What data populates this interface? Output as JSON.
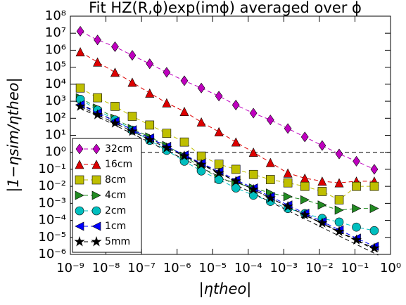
{
  "chart_data": {
    "type": "line",
    "title": "Fit HZ(R,ϕ)exp(imϕ) averaged over ϕ",
    "x_label": "|ηtheo|",
    "y_label": "|1−ηsim/ηtheo|",
    "log_x": true,
    "log_y": true,
    "legend": "lower left",
    "x": [
      1.9e-09,
      5.8e-09,
      1.8e-08,
      5.5e-08,
      1.7e-07,
      5.1e-07,
      1.6e-06,
      4.8e-06,
      1.5e-05,
      4.5e-05,
      0.00014,
      0.00042,
      0.0013,
      0.0039,
      0.012,
      0.036,
      0.11,
      0.35
    ],
    "series": [
      {
        "name": "32cm",
        "color": "#bf00bf",
        "marker": "diamond",
        "values": [
          13000000.0,
          4000000.0,
          1600000.0,
          500000.0,
          160000.0,
          50000.0,
          16000.0,
          6000.0,
          2000.0,
          600,
          200,
          80,
          25,
          8,
          2.5,
          0.8,
          0.3,
          0.1
        ]
      },
      {
        "name": "16cm",
        "color": "#dd0000",
        "marker": "triangle-up",
        "values": [
          800000.0,
          200000.0,
          50000.0,
          13000.0,
          3000.0,
          800,
          250,
          60,
          16,
          4,
          1,
          0.25,
          0.06,
          0.03,
          0.02,
          0.016,
          0.02,
          0.02
        ]
      },
      {
        "name": "8cm",
        "color": "#bfbf00",
        "marker": "square",
        "values": [
          6000.0,
          1600.0,
          500,
          130,
          40,
          13,
          4,
          0.6,
          0.2,
          0.1,
          0.05,
          0.025,
          0.016,
          0.01,
          0.005,
          0.0016,
          0.01,
          0.01
        ]
      },
      {
        "name": "4cm",
        "color": "#228b22",
        "marker": "triangle-right",
        "values": [
          1600.0,
          400,
          100,
          25,
          8,
          2.5,
          0.6,
          0.13,
          0.03,
          0.016,
          0.008,
          0.004,
          0.0025,
          0.0016,
          0.0008,
          0.0004,
          0.0005,
          0.0005
        ]
      },
      {
        "name": "2cm",
        "color": "#00bfbf",
        "marker": "circle",
        "values": [
          1300.0,
          300,
          80,
          20,
          5,
          1.3,
          0.3,
          0.08,
          0.025,
          0.008,
          0.003,
          0.0013,
          0.0005,
          0.00025,
          0.00013,
          8e-05,
          4e-05,
          2.5e-05
        ]
      },
      {
        "name": "1cm",
        "color": "#0000ff",
        "marker": "triangle-left",
        "values": [
          630,
          205,
          67,
          21,
          7,
          2.2,
          0.7,
          0.23,
          0.075,
          0.024,
          0.008,
          0.0025,
          0.0008,
          0.00026,
          8.5e-05,
          2.8e-05,
          9e-06,
          3e-06
        ]
      },
      {
        "name": "5mm",
        "color": "#000000",
        "marker": "star",
        "values": [
          500,
          160,
          52,
          17,
          5.5,
          1.8,
          0.6,
          0.19,
          0.06,
          0.02,
          0.0065,
          0.002,
          0.00065,
          0.00021,
          7e-05,
          2.2e-05,
          7e-06,
          2.3e-06
        ]
      }
    ],
    "guides": [
      {
        "x": [
          1.9e-09,
          0.45
        ],
        "values": [
          700,
          1.5e-06
        ]
      },
      {
        "x": [
          1.9e-09,
          0.45
        ],
        "values": [
          400,
          9e-07
        ]
      }
    ],
    "hline": 1,
    "xlim": [
      1e-09,
      1
    ],
    "ylim": [
      1e-06,
      100000000.0
    ],
    "xticks": [
      {
        "value": 1e-09,
        "label": "10⁻⁹"
      },
      {
        "value": 1e-08,
        "label": "10⁻⁸"
      },
      {
        "value": 1e-07,
        "label": "10⁻⁷"
      },
      {
        "value": 1e-06,
        "label": "10⁻⁶"
      },
      {
        "value": 1e-05,
        "label": "10⁻⁵"
      },
      {
        "value": 0.0001,
        "label": "10⁻⁴"
      },
      {
        "value": 0.001,
        "label": "10⁻³"
      },
      {
        "value": 0.01,
        "label": "10⁻²"
      },
      {
        "value": 0.1,
        "label": "10⁻¹"
      },
      {
        "value": 1,
        "label": "10⁰"
      }
    ],
    "yticks": [
      {
        "value": 1e-06,
        "label": "10⁻⁶"
      },
      {
        "value": 1e-05,
        "label": "10⁻⁵"
      },
      {
        "value": 0.0001,
        "label": "10⁻⁴"
      },
      {
        "value": 0.001,
        "label": "10⁻³"
      },
      {
        "value": 0.01,
        "label": "10⁻²"
      },
      {
        "value": 0.1,
        "label": "10⁻¹"
      },
      {
        "value": 1,
        "label": "10⁰"
      },
      {
        "value": 10,
        "label": "10¹"
      },
      {
        "value": 100,
        "label": "10²"
      },
      {
        "value": 1000,
        "label": "10³"
      },
      {
        "value": 10000.0,
        "label": "10⁴"
      },
      {
        "value": 100000.0,
        "label": "10⁵"
      },
      {
        "value": 1000000.0,
        "label": "10⁶"
      },
      {
        "value": 10000000.0,
        "label": "10⁷"
      },
      {
        "value": 100000000.0,
        "label": "10⁸"
      }
    ]
  }
}
